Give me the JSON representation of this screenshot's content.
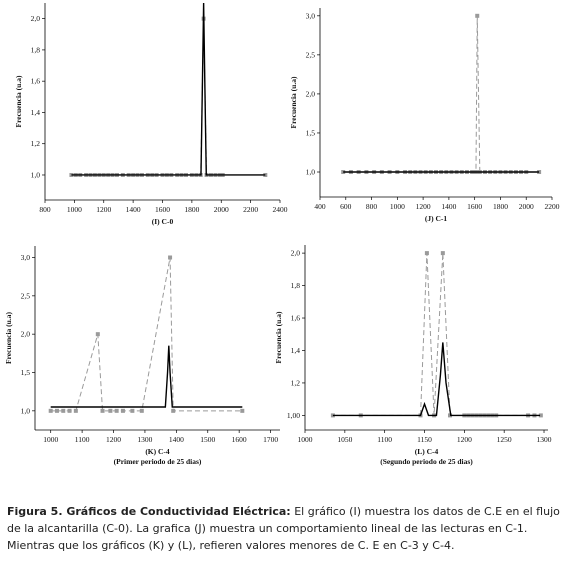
{
  "chart_data": [
    {
      "type": "line",
      "xlabel": "(I) C-0",
      "ylabel": "Frecuencia (u.a)",
      "xlim": [
        800,
        2400
      ],
      "xticks": [
        800,
        1000,
        1200,
        1400,
        1600,
        1800,
        2000,
        2200,
        2400
      ],
      "ylim": [
        0.84,
        2.1
      ],
      "yticks": [
        {
          "value": 1.0,
          "label": "1,0"
        },
        {
          "value": 1.2,
          "label": "1,2"
        },
        {
          "value": 1.4,
          "label": "1,4"
        },
        {
          "value": 1.6,
          "label": "1,6"
        },
        {
          "value": 1.8,
          "label": "1,8"
        },
        {
          "value": 2.0,
          "label": "2,0"
        }
      ],
      "series": [
        {
          "color": "#9a9a9a",
          "dash": true,
          "marker": "square",
          "x": [
            980,
            1010,
            1040,
            1080,
            1110,
            1140,
            1170,
            1200,
            1230,
            1260,
            1290,
            1330,
            1370,
            1400,
            1430,
            1460,
            1500,
            1530,
            1560,
            1600,
            1630,
            1660,
            1700,
            1730,
            1760,
            1800,
            1830,
            1860,
            1880,
            1900,
            1930,
            1960,
            1990,
            2010,
            2300
          ],
          "values": [
            1,
            1,
            1,
            1,
            1,
            1,
            1,
            1,
            1,
            1,
            1,
            1,
            1,
            1,
            1,
            1,
            1,
            1,
            1,
            1,
            1,
            1,
            1,
            1,
            1,
            1,
            1,
            1,
            2.0,
            1,
            1,
            1,
            1,
            1,
            1
          ]
        },
        {
          "color": "#000000",
          "dash": false,
          "marker": "none",
          "x": [
            980,
            1862,
            1872,
            1880,
            1888,
            1898,
            2300
          ],
          "values": [
            1,
            1,
            1.6,
            2.1,
            1.6,
            1,
            1
          ]
        }
      ]
    },
    {
      "type": "line",
      "xlabel": "(J) C-1",
      "ylabel": "Frecuencia (u.a)",
      "xlim": [
        400,
        2200
      ],
      "xticks": [
        400,
        600,
        800,
        1000,
        1200,
        1400,
        1600,
        1800,
        2000,
        2200
      ],
      "ylim": [
        0.68,
        3.1
      ],
      "yticks": [
        {
          "value": 1.0,
          "label": "1,0"
        },
        {
          "value": 1.5,
          "label": "1,5"
        },
        {
          "value": 2.0,
          "label": "2,0"
        },
        {
          "value": 2.5,
          "label": "2,5"
        },
        {
          "value": 3.0,
          "label": "3,0"
        }
      ],
      "series": [
        {
          "color": "#9a9a9a",
          "dash": true,
          "marker": "square",
          "x": [
            580,
            640,
            700,
            760,
            820,
            880,
            940,
            1000,
            1060,
            1100,
            1140,
            1180,
            1220,
            1260,
            1300,
            1340,
            1380,
            1420,
            1460,
            1500,
            1540,
            1580,
            1610,
            1620,
            1640,
            1680,
            1720,
            1760,
            1800,
            1840,
            1880,
            1920,
            1960,
            2000,
            2100
          ],
          "values": [
            1,
            1,
            1,
            1,
            1,
            1,
            1,
            1,
            1,
            1,
            1,
            1,
            1,
            1,
            1,
            1,
            1,
            1,
            1,
            1,
            1,
            1,
            1,
            3.0,
            1,
            1,
            1,
            1,
            1,
            1,
            1,
            1,
            1,
            1,
            1
          ]
        },
        {
          "color": "#000000",
          "dash": false,
          "marker": "none",
          "x": [
            580,
            2100
          ],
          "values": [
            1,
            1
          ]
        }
      ]
    },
    {
      "type": "line",
      "xlabel": "(K) C-4",
      "subtitle": "(Primer periodo de 25 dias)",
      "ylabel": "Frecuencia (u.a)",
      "xlim": [
        950,
        1730
      ],
      "xticks": [
        1000,
        1100,
        1200,
        1300,
        1400,
        1500,
        1600,
        1700
      ],
      "ylim": [
        0.75,
        3.15
      ],
      "yticks": [
        {
          "value": 1.0,
          "label": "1,0"
        },
        {
          "value": 1.5,
          "label": "1,5"
        },
        {
          "value": 2.0,
          "label": "2,0"
        },
        {
          "value": 2.5,
          "label": "2,5"
        },
        {
          "value": 3.0,
          "label": "3,0"
        }
      ],
      "series": [
        {
          "color": "#9a9a9a",
          "dash": true,
          "marker": "square",
          "x": [
            1000,
            1020,
            1040,
            1060,
            1080,
            1150,
            1165,
            1190,
            1210,
            1230,
            1260,
            1290,
            1380,
            1390,
            1610
          ],
          "values": [
            1,
            1,
            1,
            1,
            1,
            2.0,
            1,
            1,
            1,
            1,
            1,
            1,
            3.0,
            1,
            1
          ]
        },
        {
          "color": "#000000",
          "dash": false,
          "marker": "none",
          "x": [
            1000,
            1365,
            1372,
            1376,
            1380,
            1387,
            1610
          ],
          "values": [
            1.05,
            1.05,
            1.5,
            1.85,
            1.5,
            1.05,
            1.05
          ]
        }
      ]
    },
    {
      "type": "line",
      "xlabel": "(L) C-4",
      "subtitle": "(Segundo periodo de 25 dias)",
      "ylabel": "Frecuencia (u.a)",
      "xlim": [
        1000,
        1305
      ],
      "xticks": [
        1000,
        1050,
        1100,
        1150,
        1200,
        1250,
        1300
      ],
      "ylim": [
        0.91,
        2.05
      ],
      "yticks": [
        {
          "value": 1.0,
          "label": "1,00"
        },
        {
          "value": 1.2,
          "label": "1,2"
        },
        {
          "value": 1.4,
          "label": "1,4"
        },
        {
          "value": 1.6,
          "label": "1,6"
        },
        {
          "value": 1.8,
          "label": "1,8"
        },
        {
          "value": 2.0,
          "label": "2,0"
        }
      ],
      "series": [
        {
          "color": "#9a9a9a",
          "dash": true,
          "marker": "square",
          "x": [
            1035,
            1070,
            1145,
            1153,
            1162,
            1173,
            1182,
            1200,
            1205,
            1210,
            1215,
            1220,
            1225,
            1230,
            1235,
            1240,
            1280,
            1288,
            1296
          ],
          "values": [
            1,
            1,
            1,
            2.0,
            1,
            2.0,
            1,
            1,
            1,
            1,
            1,
            1,
            1,
            1,
            1,
            1,
            1,
            1,
            1
          ]
        },
        {
          "color": "#000000",
          "dash": false,
          "marker": "none",
          "x": [
            1035,
            1145,
            1150,
            1155,
            1165,
            1170,
            1173,
            1177,
            1183,
            1295
          ],
          "values": [
            1,
            1,
            1.07,
            1,
            1,
            1.25,
            1.45,
            1.2,
            1,
            1
          ]
        }
      ]
    }
  ],
  "caption": {
    "label": "Figura 5. Gráficos de Conductividad Eléctrica:",
    "text": "El gráfico (I) muestra los datos de C.E en el flujo de la alcantarilla (C-0). La grafica  (J) muestra un comportamiento lineal de las lecturas en C-1. Mientras que los gráficos (K) y (L), refieren valores menores de C. E  en C-3 y C-4."
  }
}
